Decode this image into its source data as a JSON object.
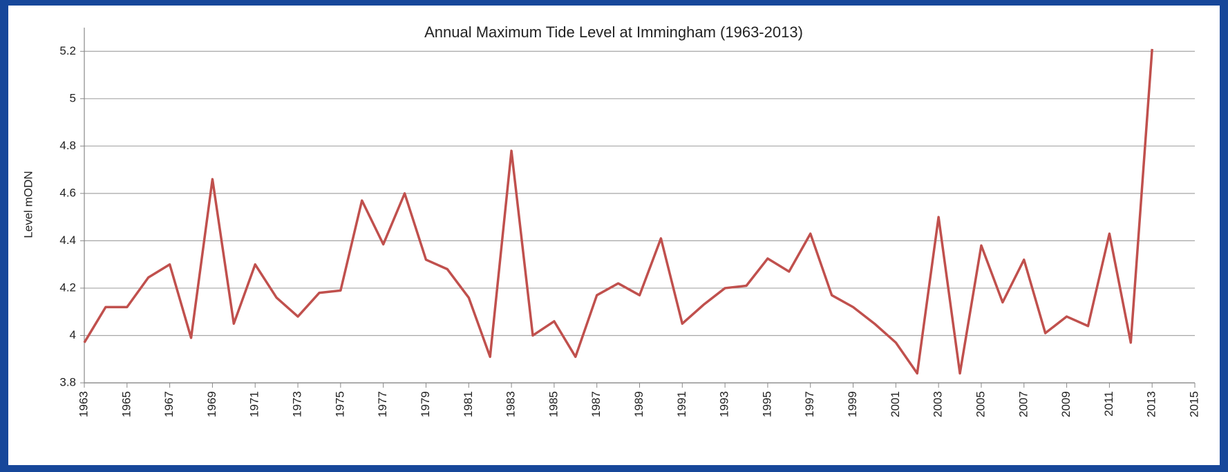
{
  "chart_data": {
    "type": "line",
    "title": "Annual Maximum Tide Level at Immingham  (1963-2013)",
    "y_label": "Level   mODN",
    "x": [
      1963,
      1964,
      1965,
      1966,
      1967,
      1968,
      1969,
      1970,
      1971,
      1972,
      1973,
      1974,
      1975,
      1976,
      1977,
      1978,
      1979,
      1980,
      1981,
      1982,
      1983,
      1984,
      1985,
      1986,
      1987,
      1988,
      1989,
      1990,
      1991,
      1992,
      1993,
      1994,
      1995,
      1996,
      1997,
      1998,
      1999,
      2000,
      2001,
      2002,
      2003,
      2004,
      2005,
      2006,
      2007,
      2008,
      2009,
      2010,
      2011,
      2012,
      2013
    ],
    "series": [
      {
        "name": "Annual maximum",
        "color": "#c0504d",
        "values": [
          3.97,
          4.12,
          4.12,
          4.245,
          4.3,
          3.99,
          4.66,
          4.05,
          4.3,
          4.16,
          4.08,
          4.18,
          4.19,
          4.57,
          4.385,
          4.6,
          4.32,
          4.28,
          4.16,
          3.91,
          4.78,
          4.0,
          4.06,
          3.91,
          4.17,
          4.22,
          4.17,
          4.41,
          4.05,
          4.13,
          4.2,
          4.21,
          4.325,
          4.27,
          4.43,
          4.17,
          4.12,
          4.05,
          3.97,
          3.84,
          4.5,
          3.84,
          4.38,
          4.14,
          4.32,
          4.01,
          4.08,
          4.04,
          4.43,
          3.97,
          5.21
        ]
      }
    ],
    "xlim": [
      1963,
      2015
    ],
    "xticks": [
      1963,
      1965,
      1967,
      1969,
      1971,
      1973,
      1975,
      1977,
      1979,
      1981,
      1983,
      1985,
      1987,
      1989,
      1991,
      1993,
      1995,
      1997,
      1999,
      2001,
      2003,
      2005,
      2007,
      2009,
      2011,
      2013,
      2015
    ],
    "ylim": [
      3.8,
      5.3
    ],
    "yticks": [
      3.8,
      4,
      4.2,
      4.4,
      4.6,
      4.8,
      5,
      5.2
    ],
    "grid": true
  }
}
